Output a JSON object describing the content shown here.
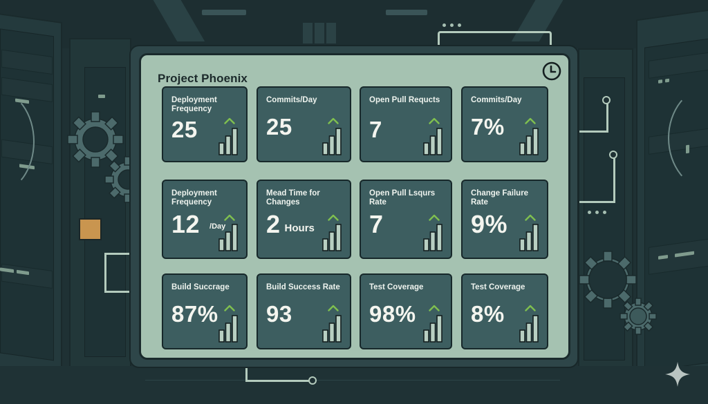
{
  "dashboard": {
    "title": "Project Phoenix",
    "clock_icon": "clock-icon",
    "accent_color": "#7fbf4f",
    "card_color": "#3d5e60",
    "panel_color": "#a5c2b1",
    "cards": [
      {
        "label": "Deployment Frequency",
        "value": "25",
        "unit": "",
        "trend": "up",
        "icon": "bar-chart-icon"
      },
      {
        "label": "Commits/Day",
        "value": "25",
        "unit": "",
        "trend": "up",
        "icon": "bar-chart-icon"
      },
      {
        "label": "Open Pull Requcts",
        "value": "7",
        "unit": "",
        "trend": "up",
        "icon": "bar-chart-icon"
      },
      {
        "label": "Commits/Day",
        "value": "7%",
        "unit": "",
        "trend": "up",
        "icon": "bar-chart-icon"
      },
      {
        "label": "Deployment Frequency",
        "value": "12",
        "unit": "/Day",
        "trend": "up",
        "icon": "bar-chart-icon"
      },
      {
        "label": "Mead Time for Changes",
        "value": "2",
        "unit": "Hours",
        "trend": "up",
        "icon": "bar-chart-icon"
      },
      {
        "label": "Open Pull Lsqurs Rate",
        "value": "7",
        "unit": "",
        "trend": "up",
        "icon": "bar-chart-icon"
      },
      {
        "label": "Change Failure Rate",
        "value": "9%",
        "unit": "",
        "trend": "up",
        "icon": "bar-chart-icon"
      },
      {
        "label": "Build Succrage",
        "value": "87%",
        "unit": "",
        "trend": "up",
        "icon": "bar-chart-icon"
      },
      {
        "label": "Build Success Rate",
        "value": "93",
        "unit": "",
        "trend": "up",
        "icon": "bar-chart-icon"
      },
      {
        "label": "Test Coverage",
        "value": "98%",
        "unit": "",
        "trend": "up",
        "icon": "bar-chart-icon"
      },
      {
        "label": "Test Coverage",
        "value": "8%",
        "unit": "",
        "trend": "up",
        "icon": "bar-chart-icon"
      }
    ]
  },
  "decor": {
    "left_indicator_color": "#c9954f",
    "corner_icon": "sparkle-icon"
  }
}
